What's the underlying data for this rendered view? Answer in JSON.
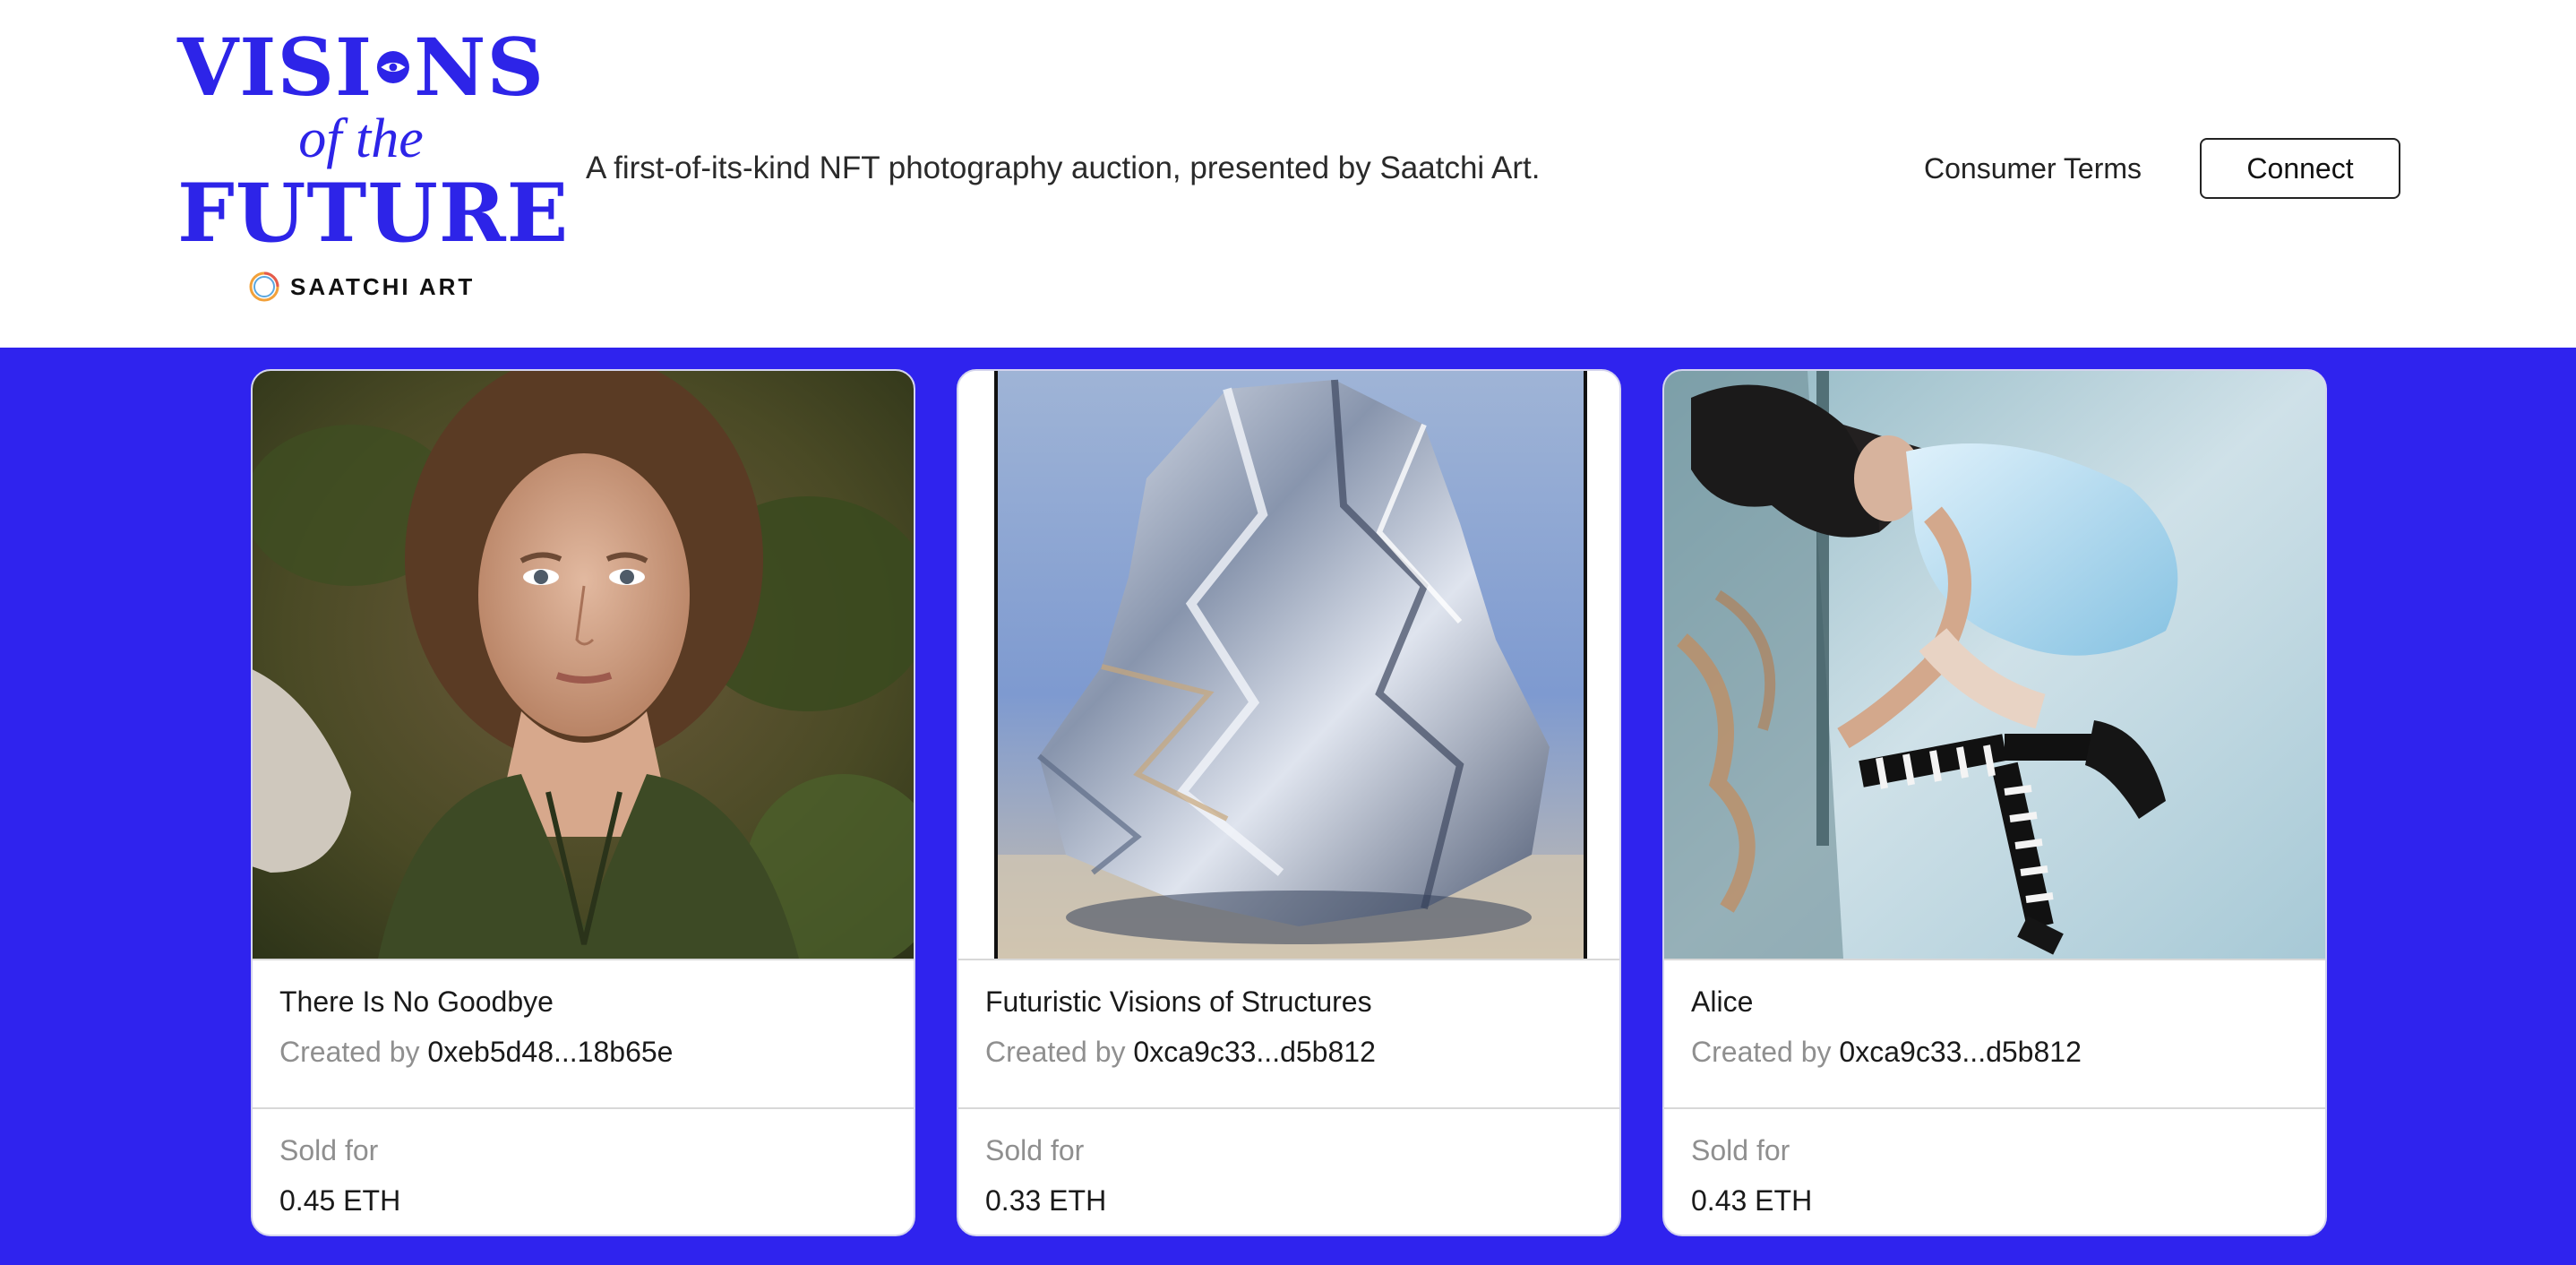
{
  "logo": {
    "line1_left": "VISI",
    "line1_right": "NS",
    "line2": "of the",
    "line3": "FUTURE",
    "brand": "SAATCHI ART"
  },
  "header": {
    "tagline": "A first-of-its-kind NFT photography auction, presented by Saatchi Art.",
    "terms_link": "Consumer Terms",
    "connect_button": "Connect"
  },
  "colors": {
    "accent": "#2f23ee",
    "logo": "#2d24e8"
  },
  "cards": [
    {
      "title": "There Is No Goodbye",
      "creator_label": "Created by",
      "creator_address": "0xeb5d48...18b65e",
      "sale_label": "Sold for",
      "price": "0.45 ETH"
    },
    {
      "title": "Futuristic Visions of Structures",
      "creator_label": "Created by",
      "creator_address": "0xca9c33...d5b812",
      "sale_label": "Sold for",
      "price": "0.33 ETH"
    },
    {
      "title": "Alice",
      "creator_label": "Created by",
      "creator_address": "0xca9c33...d5b812",
      "sale_label": "Sold for",
      "price": "0.43 ETH"
    }
  ]
}
